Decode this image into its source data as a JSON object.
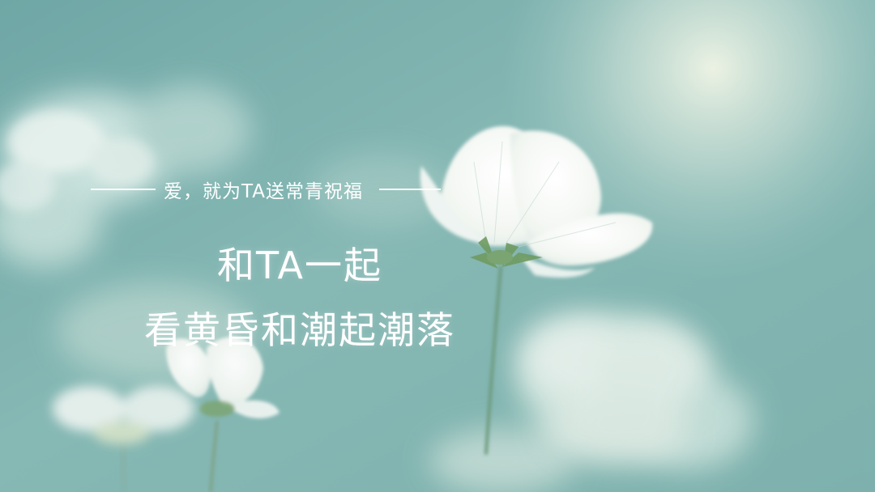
{
  "slide": {
    "tagline": "爱，就为TA送常青祝福",
    "title_line_1": "和TA一起",
    "title_line_2": "看黄昏和潮起潮落"
  },
  "colors": {
    "background": "#7fb3b0",
    "text": "#ffffff",
    "accent_light": "#eef4e8"
  }
}
